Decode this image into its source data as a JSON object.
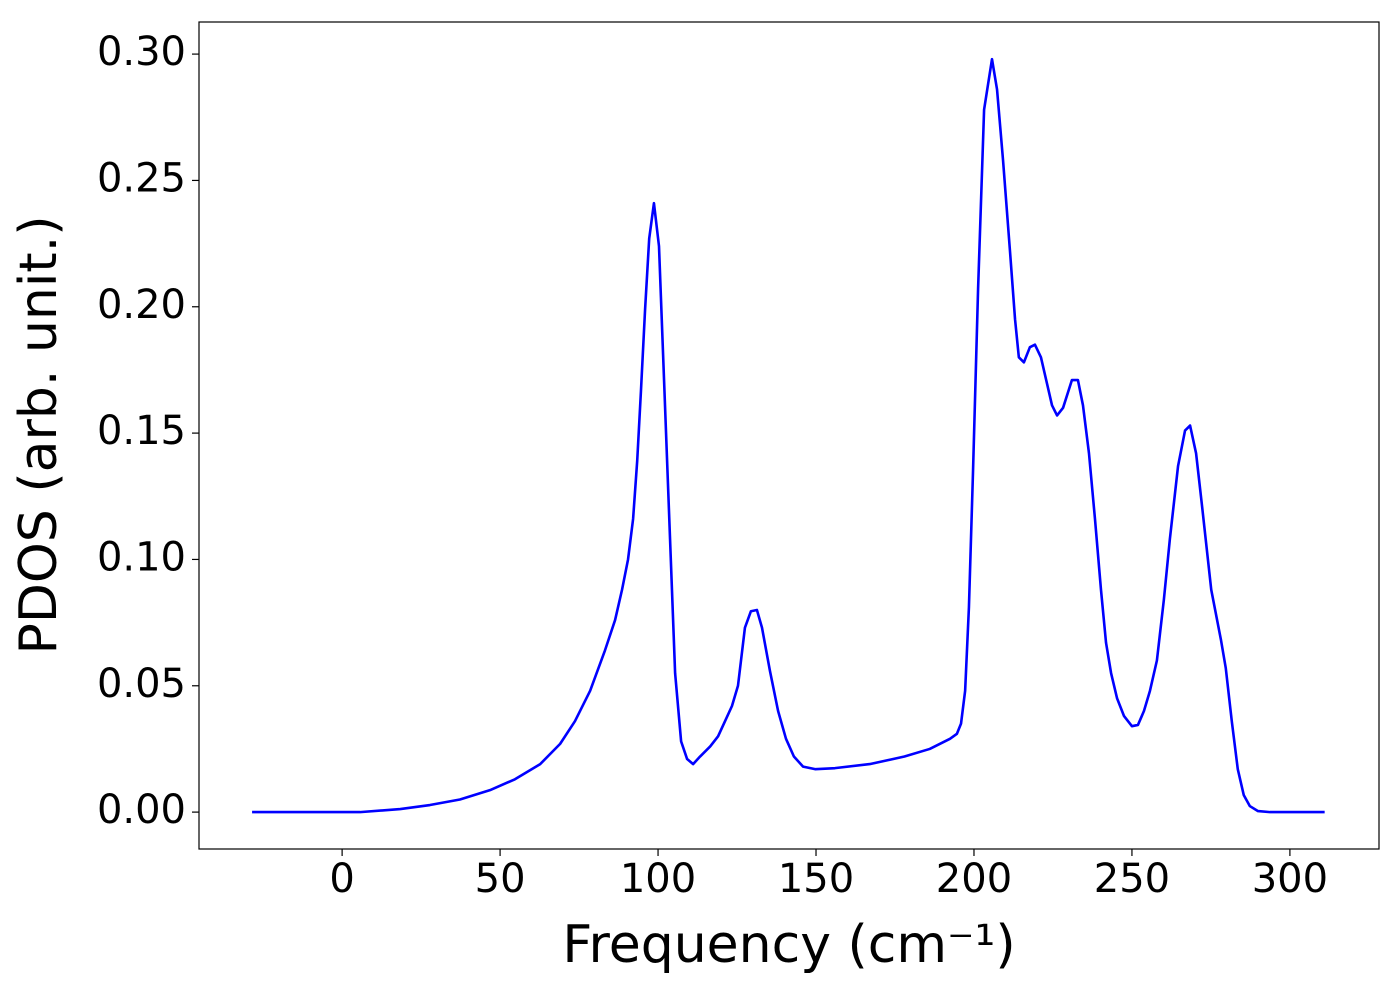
{
  "chart_data": {
    "type": "line",
    "xlabel": "Frequency (cm⁻¹)",
    "ylabel": "PDOS (arb. unit.)",
    "xlim": [
      -45.3,
      328.2
    ],
    "ylim": [
      -0.0146,
      0.3127
    ],
    "xticks": [
      0,
      50,
      100,
      150,
      200,
      250,
      300
    ],
    "yticks": [
      {
        "value": 0,
        "label": "0.00"
      },
      {
        "value": 0.05,
        "label": "0.05"
      },
      {
        "value": 0.1,
        "label": "0.10"
      },
      {
        "value": 0.15,
        "label": "0.15"
      },
      {
        "value": 0.2,
        "label": "0.20"
      },
      {
        "value": 0.25,
        "label": "0.25"
      },
      {
        "value": 0.3,
        "label": "0.30"
      }
    ],
    "x": [
      -28.5,
      0,
      5.7,
      18.4,
      27.8,
      37.3,
      46.8,
      54.7,
      62.7,
      69,
      73.7,
      78.5,
      83.2,
      86.4,
      88.6,
      90.5,
      92.1,
      93.4,
      94.6,
      95.9,
      97.2,
      98.7,
      100.3,
      101.9,
      103.8,
      105.4,
      107.3,
      109.2,
      111.1,
      113.3,
      116.5,
      119,
      121.2,
      123.4,
      125.3,
      127.5,
      129.4,
      131.3,
      132.9,
      135.4,
      138,
      140.5,
      143,
      145.9,
      149.7,
      156,
      167,
      178,
      186,
      192.4,
      194.6,
      195.9,
      197.2,
      198.4,
      199.7,
      201.3,
      203.2,
      205.7,
      207.3,
      209.2,
      211.4,
      213,
      214.2,
      215.8,
      217.7,
      219.3,
      221.2,
      224.7,
      226.3,
      228.2,
      231,
      232.9,
      234.5,
      236.4,
      238.3,
      240.2,
      241.8,
      243.4,
      245.3,
      247.5,
      250,
      251.9,
      253.8,
      255.7,
      257.9,
      260.1,
      262,
      264.6,
      266.8,
      268.4,
      270.3,
      272.2,
      275.1,
      278.2,
      279.7,
      281.6,
      283.5,
      285.4,
      287.3,
      289.9,
      293.7,
      311
    ],
    "series": [
      {
        "color": "#0000ff",
        "values": [
          0,
          0,
          0,
          0.0012,
          0.0028,
          0.005,
          0.0087,
          0.013,
          0.019,
          0.027,
          0.036,
          0.048,
          0.064,
          0.076,
          0.088,
          0.1,
          0.116,
          0.139,
          0.167,
          0.199,
          0.227,
          0.241,
          0.224,
          0.171,
          0.108,
          0.055,
          0.028,
          0.021,
          0.019,
          0.022,
          0.026,
          0.03,
          0.036,
          0.042,
          0.05,
          0.073,
          0.0795,
          0.08,
          0.073,
          0.056,
          0.04,
          0.029,
          0.022,
          0.018,
          0.017,
          0.0174,
          0.019,
          0.022,
          0.025,
          0.029,
          0.031,
          0.035,
          0.048,
          0.081,
          0.135,
          0.207,
          0.278,
          0.298,
          0.286,
          0.258,
          0.222,
          0.195,
          0.18,
          0.178,
          0.184,
          0.185,
          0.18,
          0.161,
          0.157,
          0.16,
          0.171,
          0.171,
          0.161,
          0.142,
          0.116,
          0.088,
          0.067,
          0.055,
          0.045,
          0.038,
          0.034,
          0.0345,
          0.04,
          0.048,
          0.06,
          0.084,
          0.108,
          0.137,
          0.151,
          0.153,
          0.142,
          0.121,
          0.088,
          0.068,
          0.057,
          0.036,
          0.017,
          0.0067,
          0.0024,
          0.0004,
          0,
          0
        ]
      }
    ]
  }
}
